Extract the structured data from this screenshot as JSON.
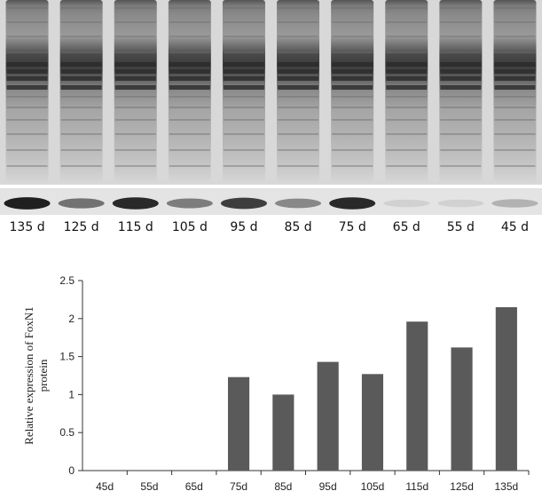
{
  "gel": {
    "lanes": [
      "135 d",
      "125 d",
      "115 d",
      "105 d",
      "95 d",
      "85 d",
      "75 d",
      "65 d",
      "55 d",
      "45 d"
    ],
    "band_intensity": [
      0.95,
      0.55,
      0.9,
      0.5,
      0.8,
      0.45,
      0.9,
      0.1,
      0.1,
      0.25
    ]
  },
  "chart_data": {
    "type": "bar",
    "categories": [
      "45d",
      "55d",
      "65d",
      "75d",
      "85d",
      "95d",
      "105d",
      "115d",
      "125d",
      "135d"
    ],
    "values": [
      0,
      0,
      0,
      1.23,
      1.0,
      1.43,
      1.27,
      1.96,
      1.62,
      2.15
    ],
    "ylabel_line1": "Relative expression of FoxN1",
    "ylabel_line2": "protein",
    "ylim": [
      0,
      2.5
    ],
    "yticks": [
      "0",
      "0.5",
      "1",
      "1.5",
      "2",
      "2.5"
    ],
    "bar_color": "#5a5a5a",
    "grid": false
  }
}
